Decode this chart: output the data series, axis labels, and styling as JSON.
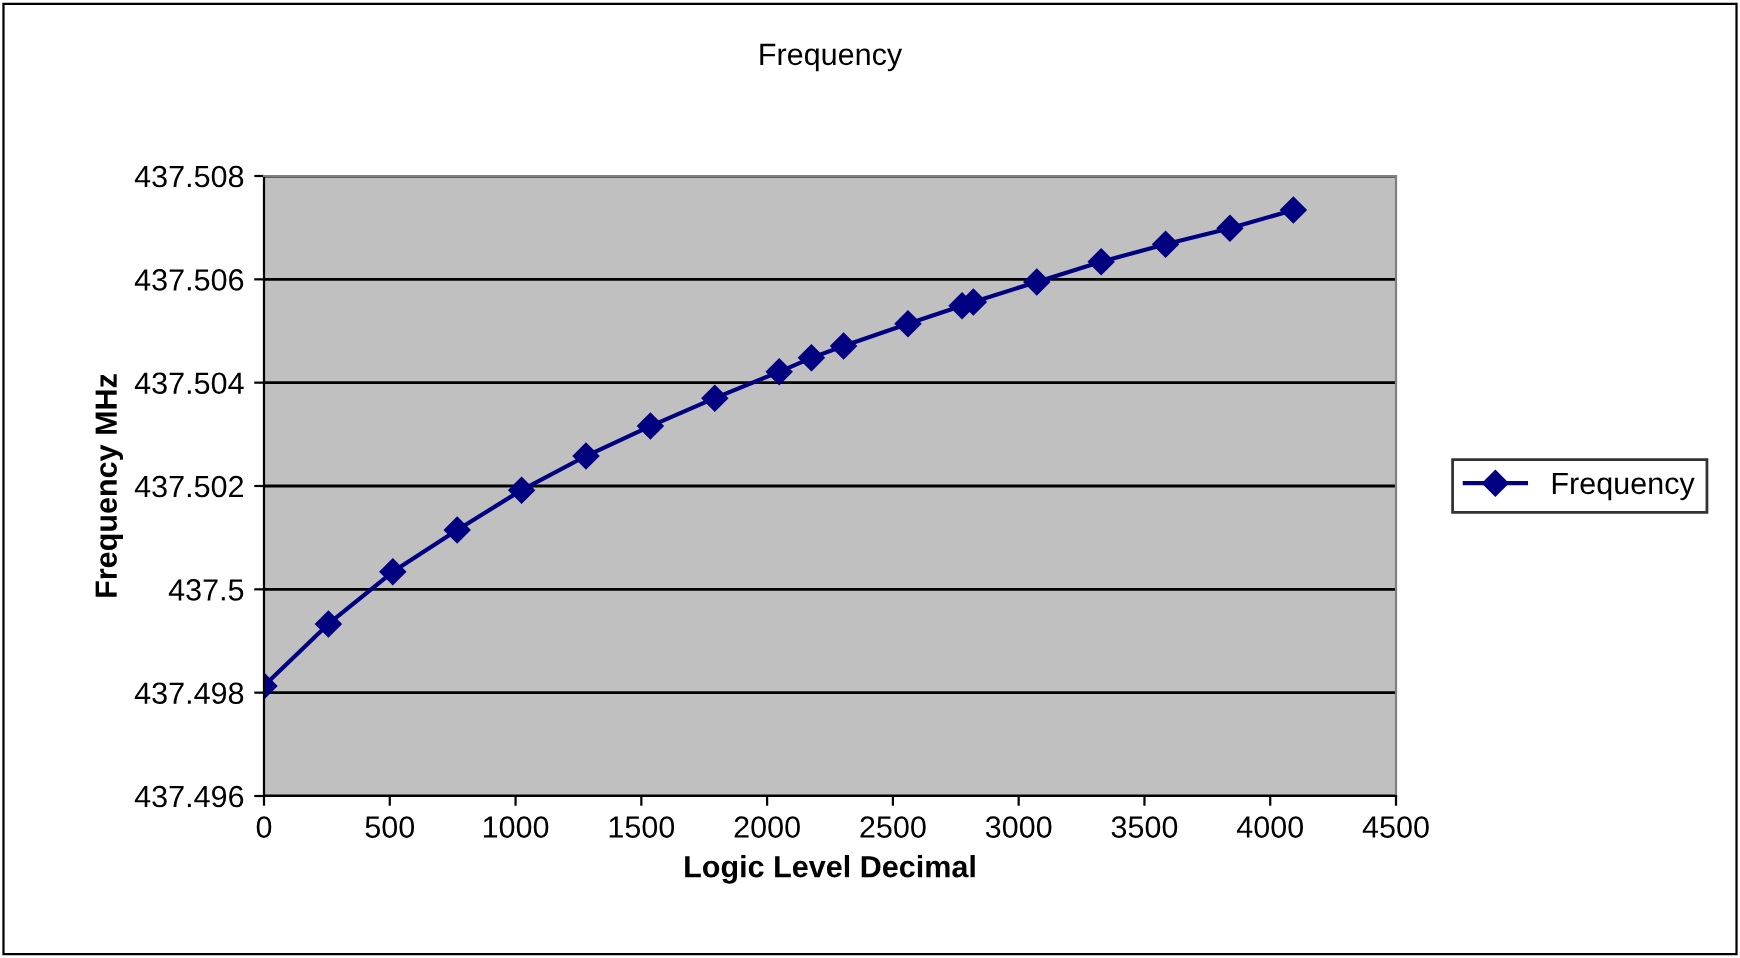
{
  "chart_data": {
    "type": "line",
    "title": "Frequency",
    "xlabel": "Logic Level Decimal",
    "ylabel": "Frequency MHz",
    "series": [
      {
        "name": "Frequency",
        "color": "#000080",
        "x": [
          0,
          256,
          512,
          768,
          1024,
          1280,
          1536,
          1792,
          2048,
          2176,
          2304,
          2560,
          2775,
          2820,
          3072,
          3328,
          3584,
          3840,
          4092
        ],
        "values": [
          437.49813,
          437.49933,
          437.50034,
          437.50115,
          437.50192,
          437.50258,
          437.50316,
          437.5037,
          437.50421,
          437.50448,
          437.50471,
          437.50514,
          437.50549,
          437.50556,
          437.50595,
          437.50634,
          437.50668,
          437.50699,
          437.50734
        ]
      }
    ],
    "xlim": [
      0,
      4500
    ],
    "xticks": [
      0,
      500,
      1000,
      1500,
      2000,
      2500,
      3000,
      3500,
      4000,
      4500
    ],
    "ylim": [
      437.496,
      437.508
    ],
    "yticks": [
      437.496,
      437.498,
      437.5,
      437.502,
      437.504,
      437.506,
      437.508
    ],
    "grid": "y",
    "legend": "right",
    "marker": "diamond",
    "line_style": "solid"
  }
}
